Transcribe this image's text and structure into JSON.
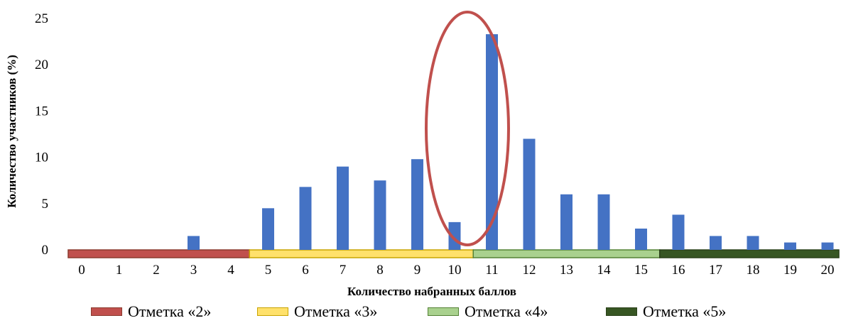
{
  "chart_data": {
    "type": "bar",
    "title": "",
    "xlabel": "Количество набранных баллов",
    "ylabel": "Количество участников (%)",
    "ylim": [
      0,
      25
    ],
    "yticks": [
      "0",
      "5",
      "10",
      "15",
      "20",
      "25"
    ],
    "categories": [
      "0",
      "1",
      "2",
      "3",
      "4",
      "5",
      "6",
      "7",
      "8",
      "9",
      "10",
      "11",
      "12",
      "13",
      "14",
      "15",
      "16",
      "17",
      "18",
      "19",
      "20"
    ],
    "series": [
      {
        "values": [
          0,
          0,
          0,
          1.5,
          0,
          4.5,
          6.8,
          9.0,
          7.5,
          9.8,
          3.0,
          23.3,
          12.0,
          6.0,
          6.0,
          2.3,
          3.8,
          1.5,
          1.5,
          0.8,
          0.8
        ],
        "color": "#4472c4"
      }
    ],
    "grade_bands": [
      {
        "name": "Отметка «2»",
        "from": 0,
        "to": 4,
        "color": "#c0504d",
        "border": "#8b3a2e"
      },
      {
        "name": "Отметка «3»",
        "from": 5,
        "to": 10,
        "color": "#ffe16b",
        "border": "#c9a400"
      },
      {
        "name": "Отметка «4»",
        "from": 11,
        "to": 15,
        "color": "#a9d18e",
        "border": "#548235"
      },
      {
        "name": "Отметка «5»",
        "from": 16,
        "to": 20,
        "color": "#375623",
        "border": "#2a4019"
      }
    ],
    "highlight": {
      "shape": "ellipse",
      "color": "#c0504d",
      "around_category": "10.5"
    },
    "grid": false,
    "legend_position": "bottom"
  }
}
